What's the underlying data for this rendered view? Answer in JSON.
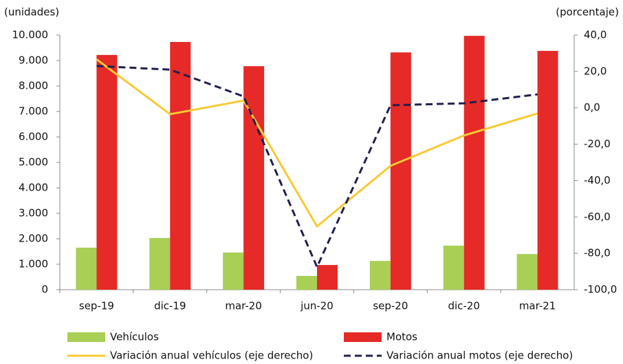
{
  "chart_data": {
    "type": "bar-line",
    "y_label": "(unidades)",
    "y2_label": "(porcentaje)",
    "categories": [
      "sep-19",
      "dic-19",
      "mar-20",
      "jun-20",
      "sep-20",
      "dic-20",
      "mar-21"
    ],
    "series": [
      {
        "name": "Vehículos",
        "type": "bar",
        "color": "#a9cf55",
        "values": [
          1650,
          2030,
          1460,
          540,
          1130,
          1730,
          1400
        ]
      },
      {
        "name": "Motos",
        "type": "bar",
        "color": "#e52a27",
        "values": [
          9220,
          9730,
          8780,
          970,
          9320,
          9970,
          9380
        ]
      },
      {
        "name": "Variación anual vehículos (eje derecho)",
        "type": "line",
        "axis": "y2",
        "color": "#f8c934",
        "dash": false,
        "values": [
          26.7,
          -3.5,
          4.0,
          -65.2,
          -31.9,
          -15.2,
          -3.1
        ]
      },
      {
        "name": "Variación anual motos (eje derecho)",
        "type": "line",
        "axis": "y2",
        "color": "#1f1f4f",
        "dash": true,
        "values": [
          23.0,
          21.0,
          6.3,
          -87.5,
          1.4,
          2.5,
          7.4
        ]
      }
    ],
    "ylim": [
      0,
      10000
    ],
    "yticks": [
      0,
      {
        "value": 1000,
        "label": "1.000"
      },
      {
        "value": 2000,
        "label": "2.000"
      },
      {
        "value": 3000,
        "label": "3.000"
      },
      {
        "value": 4000,
        "label": "4.000"
      },
      {
        "value": 5000,
        "label": "5.000"
      },
      {
        "value": 6000,
        "label": "6.000"
      },
      {
        "value": 7000,
        "label": "7.000"
      },
      {
        "value": 8000,
        "label": "8.000"
      },
      {
        "value": 9000,
        "label": "9.000"
      },
      {
        "value": 10000,
        "label": "10.000"
      }
    ],
    "y2lim": [
      -100,
      40
    ],
    "y2ticks": [
      {
        "value": -100,
        "label": "-100,0"
      },
      {
        "value": -80,
        "label": "-80,0"
      },
      {
        "value": -60,
        "label": "-60,0"
      },
      {
        "value": -40,
        "label": "-40,0"
      },
      {
        "value": -20,
        "label": "-20,0"
      },
      {
        "value": 0,
        "label": "0,0"
      },
      {
        "value": 20,
        "label": "20,0"
      },
      {
        "value": 40,
        "label": "40,0"
      }
    ],
    "grid": false,
    "legend": "bottom"
  }
}
